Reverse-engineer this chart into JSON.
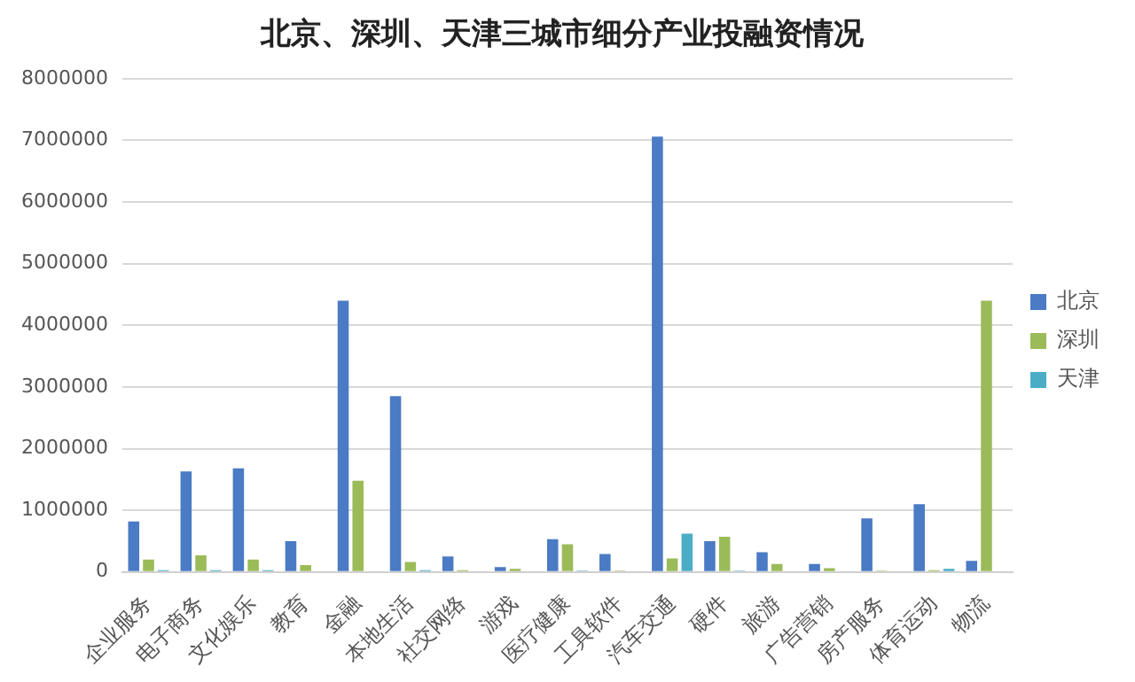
{
  "chart_data": {
    "type": "bar",
    "title": "北京、深圳、天津三城市细分产业投融资情况",
    "categories": [
      "企业服务",
      "电子商务",
      "文化娱乐",
      "教育",
      "金融",
      "本地生活",
      "社交网络",
      "游戏",
      "医疗健康",
      "工具软件",
      "汽车交通",
      "硬件",
      "旅游",
      "广告营销",
      "房产服务",
      "体育运动",
      "物流"
    ],
    "series": [
      {
        "name": "北京",
        "color": "#4a7bc4",
        "values": [
          820000,
          1630000,
          1680000,
          500000,
          4400000,
          2850000,
          250000,
          80000,
          530000,
          290000,
          7060000,
          500000,
          320000,
          130000,
          870000,
          1100000,
          180000
        ]
      },
      {
        "name": "深圳",
        "color": "#9bbb59",
        "values": [
          200000,
          270000,
          200000,
          110000,
          1480000,
          160000,
          30000,
          50000,
          450000,
          20000,
          220000,
          570000,
          130000,
          60000,
          20000,
          30000,
          4400000
        ]
      },
      {
        "name": "天津",
        "color": "#4bacc6",
        "values": [
          30000,
          30000,
          30000,
          null,
          null,
          30000,
          null,
          0,
          20000,
          0,
          620000,
          20000,
          0,
          0,
          0,
          50000,
          0
        ]
      }
    ],
    "ylim": [
      0,
      8000000
    ],
    "yticks": [
      0,
      1000000,
      2000000,
      3000000,
      4000000,
      5000000,
      6000000,
      7000000,
      8000000
    ],
    "grid": "y",
    "legend": "right"
  }
}
